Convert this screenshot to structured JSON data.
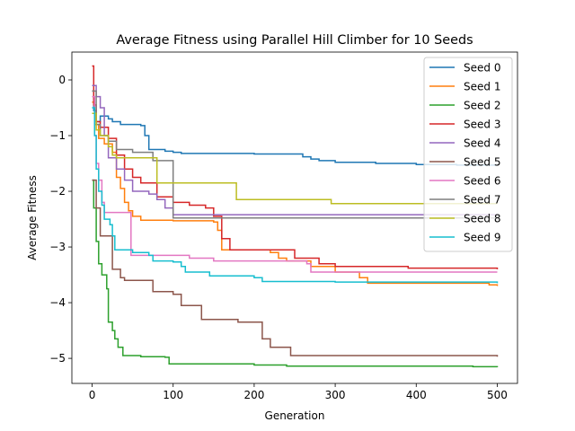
{
  "chart_data": {
    "type": "line",
    "title": "Average Fitness using Parallel Hill Climber for 10 Seeds",
    "xlabel": "Generation",
    "ylabel": "Average Fitness",
    "xlim": [
      -25,
      525
    ],
    "ylim": [
      -5.45,
      0.5
    ],
    "xticks": [
      0,
      100,
      200,
      300,
      400,
      500
    ],
    "yticks": [
      0,
      -1,
      -2,
      -3,
      -4,
      -5
    ],
    "grid": false,
    "legend_position": "top-right",
    "series": [
      {
        "name": "Seed 0",
        "color": "#1f77b4",
        "points": [
          [
            0,
            -0.2
          ],
          [
            2,
            -0.55
          ],
          [
            5,
            -0.75
          ],
          [
            10,
            -0.65
          ],
          [
            20,
            -0.7
          ],
          [
            25,
            -0.75
          ],
          [
            35,
            -0.8
          ],
          [
            60,
            -0.82
          ],
          [
            65,
            -1.0
          ],
          [
            70,
            -1.25
          ],
          [
            90,
            -1.28
          ],
          [
            100,
            -1.3
          ],
          [
            110,
            -1.32
          ],
          [
            200,
            -1.33
          ],
          [
            260,
            -1.38
          ],
          [
            270,
            -1.42
          ],
          [
            280,
            -1.45
          ],
          [
            300,
            -1.48
          ],
          [
            350,
            -1.5
          ],
          [
            400,
            -1.52
          ],
          [
            450,
            -1.53
          ],
          [
            500,
            -1.53
          ]
        ]
      },
      {
        "name": "Seed 1",
        "color": "#ff7f0e",
        "points": [
          [
            0,
            -0.4
          ],
          [
            3,
            -0.8
          ],
          [
            8,
            -1.05
          ],
          [
            15,
            -1.15
          ],
          [
            25,
            -1.3
          ],
          [
            30,
            -1.75
          ],
          [
            35,
            -1.95
          ],
          [
            40,
            -2.2
          ],
          [
            45,
            -2.35
          ],
          [
            50,
            -2.45
          ],
          [
            60,
            -2.52
          ],
          [
            100,
            -2.53
          ],
          [
            150,
            -2.55
          ],
          [
            155,
            -2.7
          ],
          [
            160,
            -3.05
          ],
          [
            200,
            -3.05
          ],
          [
            220,
            -3.1
          ],
          [
            230,
            -3.2
          ],
          [
            240,
            -3.25
          ],
          [
            270,
            -3.35
          ],
          [
            300,
            -3.45
          ],
          [
            330,
            -3.55
          ],
          [
            340,
            -3.65
          ],
          [
            490,
            -3.68
          ],
          [
            500,
            -3.7
          ]
        ]
      },
      {
        "name": "Seed 2",
        "color": "#2ca02c",
        "points": [
          [
            0,
            -1.8
          ],
          [
            2,
            -2.3
          ],
          [
            5,
            -2.9
          ],
          [
            8,
            -3.3
          ],
          [
            12,
            -3.5
          ],
          [
            18,
            -3.75
          ],
          [
            20,
            -4.35
          ],
          [
            25,
            -4.5
          ],
          [
            28,
            -4.65
          ],
          [
            32,
            -4.8
          ],
          [
            38,
            -4.95
          ],
          [
            60,
            -4.97
          ],
          [
            90,
            -4.98
          ],
          [
            95,
            -5.1
          ],
          [
            200,
            -5.12
          ],
          [
            240,
            -5.14
          ],
          [
            400,
            -5.14
          ],
          [
            470,
            -5.15
          ],
          [
            500,
            -5.16
          ]
        ]
      },
      {
        "name": "Seed 3",
        "color": "#d62728",
        "points": [
          [
            0,
            0.25
          ],
          [
            2,
            -0.45
          ],
          [
            5,
            -0.75
          ],
          [
            10,
            -0.85
          ],
          [
            20,
            -1.05
          ],
          [
            30,
            -1.35
          ],
          [
            40,
            -1.6
          ],
          [
            50,
            -1.75
          ],
          [
            60,
            -1.85
          ],
          [
            80,
            -2.1
          ],
          [
            100,
            -2.2
          ],
          [
            120,
            -2.25
          ],
          [
            140,
            -2.3
          ],
          [
            150,
            -2.45
          ],
          [
            160,
            -2.85
          ],
          [
            170,
            -3.05
          ],
          [
            240,
            -3.05
          ],
          [
            250,
            -3.2
          ],
          [
            280,
            -3.3
          ],
          [
            300,
            -3.35
          ],
          [
            340,
            -3.35
          ],
          [
            390,
            -3.38
          ],
          [
            500,
            -3.4
          ]
        ]
      },
      {
        "name": "Seed 4",
        "color": "#9467bd",
        "points": [
          [
            0,
            -0.1
          ],
          [
            5,
            -0.3
          ],
          [
            10,
            -0.5
          ],
          [
            15,
            -1.0
          ],
          [
            20,
            -1.4
          ],
          [
            30,
            -1.6
          ],
          [
            40,
            -1.8
          ],
          [
            50,
            -2.0
          ],
          [
            70,
            -2.05
          ],
          [
            80,
            -2.15
          ],
          [
            90,
            -2.3
          ],
          [
            100,
            -2.42
          ],
          [
            500,
            -2.42
          ]
        ]
      },
      {
        "name": "Seed 5",
        "color": "#8c564b",
        "points": [
          [
            0,
            -1.8
          ],
          [
            5,
            -2.3
          ],
          [
            10,
            -2.8
          ],
          [
            20,
            -2.8
          ],
          [
            25,
            -3.4
          ],
          [
            35,
            -3.55
          ],
          [
            40,
            -3.6
          ],
          [
            70,
            -3.6
          ],
          [
            75,
            -3.8
          ],
          [
            100,
            -3.85
          ],
          [
            110,
            -4.05
          ],
          [
            130,
            -4.05
          ],
          [
            135,
            -4.3
          ],
          [
            180,
            -4.35
          ],
          [
            205,
            -4.35
          ],
          [
            210,
            -4.65
          ],
          [
            220,
            -4.8
          ],
          [
            240,
            -4.8
          ],
          [
            245,
            -4.95
          ],
          [
            500,
            -4.97
          ]
        ]
      },
      {
        "name": "Seed 6",
        "color": "#e377c2",
        "points": [
          [
            0,
            -0.3
          ],
          [
            3,
            -1.0
          ],
          [
            5,
            -1.5
          ],
          [
            8,
            -1.8
          ],
          [
            12,
            -2.2
          ],
          [
            15,
            -2.38
          ],
          [
            45,
            -2.38
          ],
          [
            48,
            -3.15
          ],
          [
            100,
            -3.15
          ],
          [
            120,
            -3.2
          ],
          [
            150,
            -3.25
          ],
          [
            160,
            -3.25
          ],
          [
            250,
            -3.25
          ],
          [
            265,
            -3.3
          ],
          [
            270,
            -3.45
          ],
          [
            500,
            -3.45
          ]
        ]
      },
      {
        "name": "Seed 7",
        "color": "#7f7f7f",
        "points": [
          [
            0,
            -0.2
          ],
          [
            5,
            -0.8
          ],
          [
            10,
            -1.0
          ],
          [
            20,
            -1.1
          ],
          [
            30,
            -1.25
          ],
          [
            50,
            -1.3
          ],
          [
            70,
            -1.3
          ],
          [
            75,
            -1.45
          ],
          [
            95,
            -1.45
          ],
          [
            100,
            -2.48
          ],
          [
            500,
            -2.52
          ]
        ]
      },
      {
        "name": "Seed 8",
        "color": "#bcbd22",
        "points": [
          [
            0,
            -0.6
          ],
          [
            5,
            -0.9
          ],
          [
            10,
            -1.0
          ],
          [
            20,
            -1.2
          ],
          [
            25,
            -1.35
          ],
          [
            30,
            -1.4
          ],
          [
            50,
            -1.4
          ],
          [
            70,
            -1.4
          ],
          [
            80,
            -1.85
          ],
          [
            175,
            -1.85
          ],
          [
            178,
            -2.15
          ],
          [
            290,
            -2.15
          ],
          [
            295,
            -2.22
          ],
          [
            500,
            -2.22
          ]
        ]
      },
      {
        "name": "Seed 9",
        "color": "#17becf",
        "points": [
          [
            0,
            -0.5
          ],
          [
            3,
            -1.0
          ],
          [
            5,
            -1.6
          ],
          [
            8,
            -2.0
          ],
          [
            12,
            -2.25
          ],
          [
            15,
            -2.5
          ],
          [
            22,
            -2.6
          ],
          [
            25,
            -2.8
          ],
          [
            28,
            -3.05
          ],
          [
            40,
            -3.05
          ],
          [
            50,
            -3.1
          ],
          [
            70,
            -3.15
          ],
          [
            75,
            -3.25
          ],
          [
            100,
            -3.27
          ],
          [
            110,
            -3.35
          ],
          [
            115,
            -3.45
          ],
          [
            125,
            -3.45
          ],
          [
            145,
            -3.52
          ],
          [
            200,
            -3.55
          ],
          [
            210,
            -3.62
          ],
          [
            300,
            -3.63
          ],
          [
            500,
            -3.65
          ]
        ]
      }
    ]
  }
}
